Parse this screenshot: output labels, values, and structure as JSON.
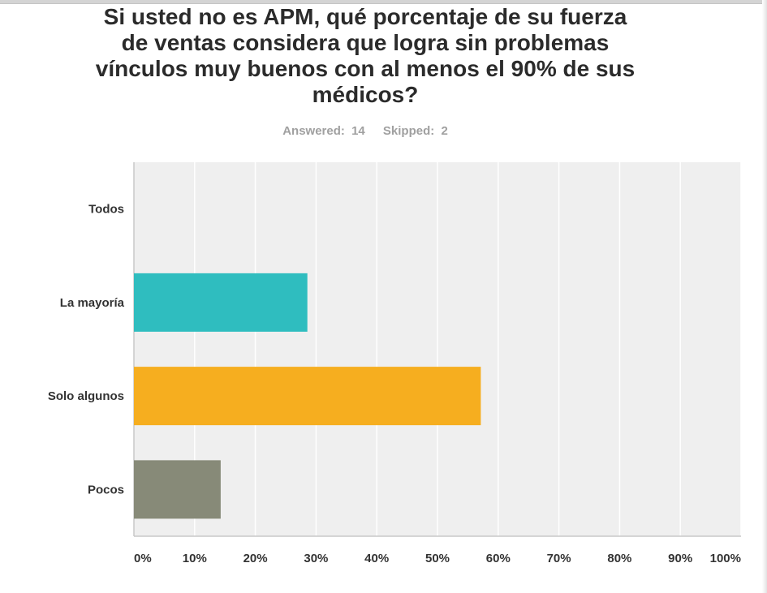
{
  "survey": {
    "answered_label": "Answered:",
    "answered_count": "14",
    "skipped_label": "Skipped:",
    "skipped_count": "2"
  },
  "chart_data": {
    "type": "bar",
    "orientation": "horizontal",
    "title": "Si usted no es APM, qué porcentaje de su fuerza de ventas considera que logra sin problemas vínculos muy buenos con al menos el 90% de sus médicos?",
    "categories": [
      "Todos",
      "La mayoría",
      "Solo algunos",
      "Pocos"
    ],
    "values": [
      0,
      28.57,
      57.14,
      14.29
    ],
    "colors": [
      "#2fbdbf",
      "#2fbdbf",
      "#f6ae1f",
      "#878a78"
    ],
    "xlim": [
      0,
      100
    ],
    "x_ticks": [
      "0%",
      "10%",
      "20%",
      "30%",
      "40%",
      "50%",
      "60%",
      "70%",
      "80%",
      "90%",
      "100%"
    ],
    "xlabel": "",
    "ylabel": "",
    "grid": true,
    "background": "#efefef",
    "gridline_color": "#ffffff"
  }
}
